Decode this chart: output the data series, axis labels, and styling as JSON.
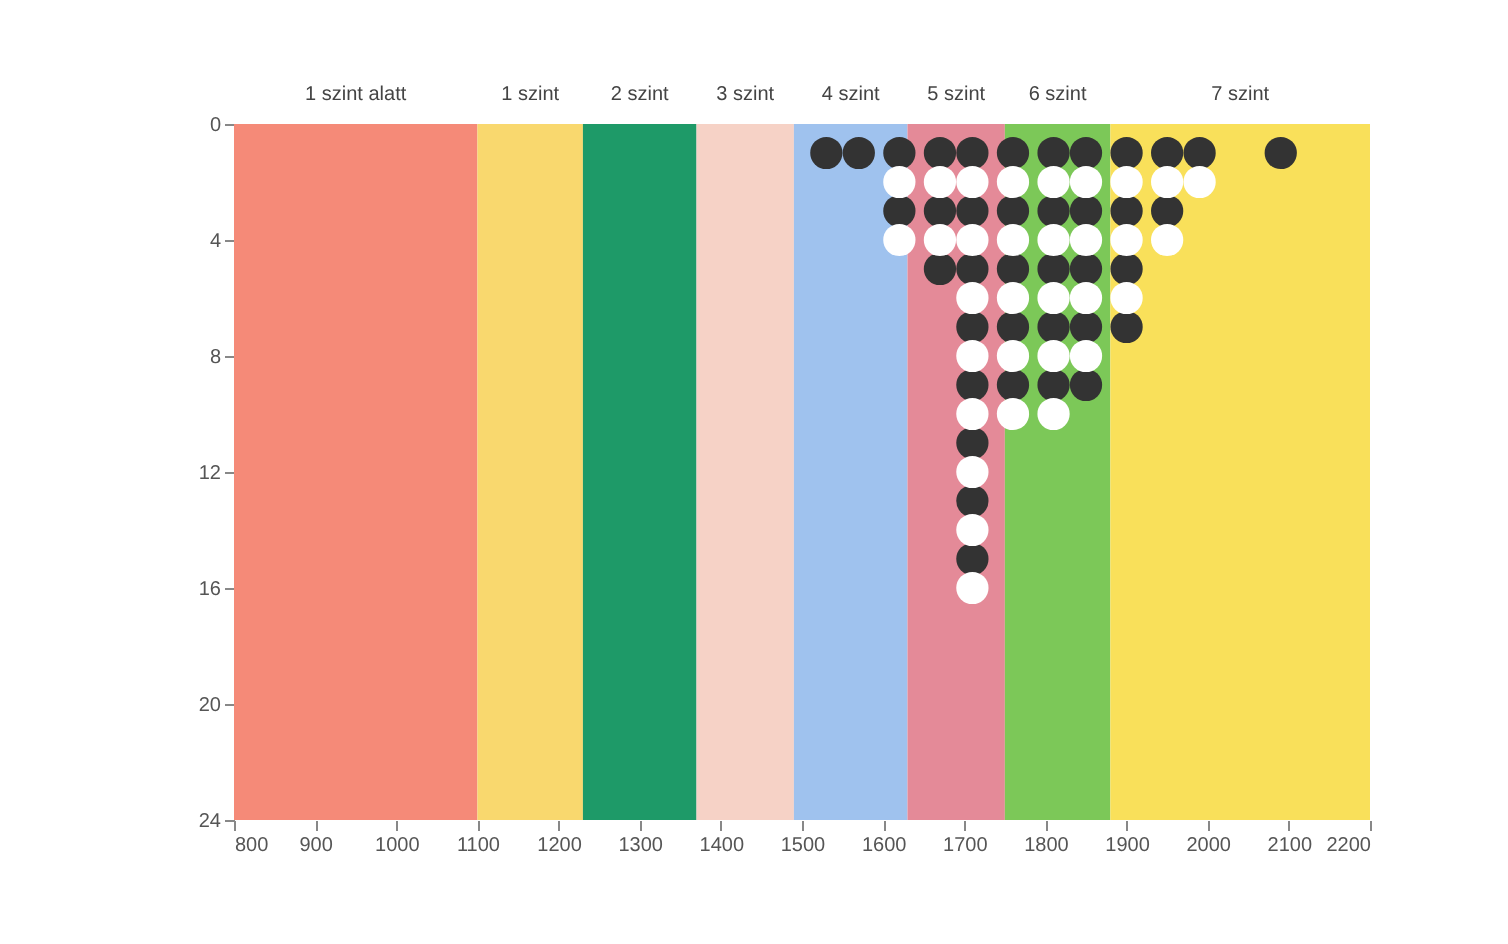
{
  "chart_data": {
    "type": "scatter",
    "xlim": [
      800,
      2200
    ],
    "xticks": [
      800,
      900,
      1000,
      1100,
      1200,
      1300,
      1400,
      1500,
      1600,
      1700,
      1800,
      1900,
      2000,
      2100,
      2200
    ],
    "ylim": [
      24,
      0
    ],
    "yticks": [
      0,
      4,
      8,
      12,
      16,
      20,
      24
    ],
    "marker": "circle",
    "bands": [
      {
        "axis": "x",
        "from": 800,
        "to": 1100,
        "label": "1 szint alatt",
        "color": "#f58a78"
      },
      {
        "axis": "x",
        "from": 1100,
        "to": 1230,
        "label": "1 szint",
        "color": "#f9d86e"
      },
      {
        "axis": "x",
        "from": 1230,
        "to": 1370,
        "label": "2 szint",
        "color": "#1e9a68"
      },
      {
        "axis": "x",
        "from": 1370,
        "to": 1490,
        "label": "3 szint",
        "color": "#f6d2c6"
      },
      {
        "axis": "x",
        "from": 1490,
        "to": 1630,
        "label": "4 szint",
        "color": "#9fc2ee"
      },
      {
        "axis": "x",
        "from": 1630,
        "to": 1750,
        "label": "5 szint",
        "color": "#e48a98"
      },
      {
        "axis": "x",
        "from": 1750,
        "to": 1880,
        "label": "6 szint",
        "color": "#7cc858"
      },
      {
        "axis": "x",
        "from": 1880,
        "to": 2200,
        "label": "7 szint",
        "color": "#f9e05a"
      }
    ],
    "series": [
      {
        "color": "#333333",
        "x": [
          1530,
          1570,
          1620,
          1670,
          1710,
          1760,
          1810,
          1850,
          1900,
          1950,
          1990,
          2090,
          1620,
          1670,
          1710,
          1760,
          1810,
          1850,
          1900,
          1950,
          1670,
          1710,
          1760,
          1810,
          1850,
          1900,
          1710,
          1760,
          1810,
          1850,
          1900,
          1710,
          1760,
          1810,
          1850,
          1710,
          1710,
          1710
        ],
        "values": [
          1,
          1,
          1,
          1,
          1,
          1,
          1,
          1,
          1,
          1,
          1,
          1,
          3,
          3,
          3,
          3,
          3,
          3,
          3,
          3,
          5,
          5,
          5,
          5,
          5,
          5,
          7,
          7,
          7,
          7,
          7,
          9,
          9,
          9,
          9,
          11,
          13,
          15
        ]
      },
      {
        "color": "#ffffff",
        "x": [
          1620,
          1670,
          1710,
          1760,
          1810,
          1850,
          1900,
          1950,
          1990,
          1620,
          1670,
          1710,
          1760,
          1810,
          1850,
          1900,
          1950,
          1710,
          1760,
          1810,
          1850,
          1900,
          1710,
          1760,
          1810,
          1850,
          1710,
          1760,
          1810,
          1710,
          1710,
          1710
        ],
        "values": [
          2,
          2,
          2,
          2,
          2,
          2,
          2,
          2,
          2,
          4,
          4,
          4,
          4,
          4,
          4,
          4,
          4,
          6,
          6,
          6,
          6,
          6,
          8,
          8,
          8,
          8,
          10,
          10,
          10,
          12,
          14,
          16
        ]
      }
    ]
  }
}
